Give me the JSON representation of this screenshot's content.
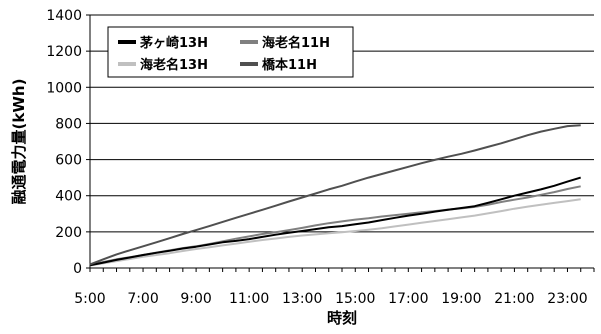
{
  "chart_data": {
    "type": "line",
    "title": "",
    "xlabel": "時刻",
    "ylabel": "融通電力量(kWh)",
    "x": [
      "5:00",
      "5:30",
      "6:00",
      "6:30",
      "7:00",
      "7:30",
      "8:00",
      "8:30",
      "9:00",
      "9:30",
      "10:00",
      "10:30",
      "11:00",
      "11:30",
      "12:00",
      "12:30",
      "13:00",
      "13:30",
      "14:00",
      "14:30",
      "15:00",
      "15:30",
      "16:00",
      "16:30",
      "17:00",
      "17:30",
      "18:00",
      "18:30",
      "19:00",
      "19:30",
      "20:00",
      "20:30",
      "21:00",
      "21:30",
      "22:00",
      "22:30",
      "23:00",
      "23:30"
    ],
    "x_ticks": [
      "5:00",
      "7:00",
      "9:00",
      "11:00",
      "13:00",
      "15:00",
      "17:00",
      "19:00",
      "21:00",
      "23:00"
    ],
    "ylim": [
      0,
      1400
    ],
    "y_ticks": [
      "0",
      "200",
      "400",
      "600",
      "800",
      "1000",
      "1200",
      "1400"
    ],
    "grid": "horizontal",
    "legend_position": "top-left",
    "series": [
      {
        "name": "茅ヶ崎13H",
        "color": "#000000",
        "values": [
          15,
          30,
          45,
          58,
          72,
          84,
          95,
          108,
          118,
          130,
          142,
          150,
          160,
          172,
          184,
          195,
          205,
          215,
          225,
          232,
          242,
          252,
          265,
          278,
          290,
          300,
          312,
          322,
          332,
          342,
          360,
          380,
          400,
          418,
          435,
          455,
          478,
          500
        ]
      },
      {
        "name": "海老名11H",
        "color": "#808080",
        "values": [
          18,
          33,
          48,
          60,
          72,
          85,
          98,
          110,
          120,
          133,
          148,
          162,
          175,
          188,
          198,
          210,
          222,
          236,
          248,
          258,
          268,
          275,
          285,
          293,
          300,
          308,
          315,
          323,
          330,
          338,
          350,
          365,
          378,
          390,
          405,
          420,
          437,
          452
        ]
      },
      {
        "name": "海老名13H",
        "color": "#c0c0c0",
        "values": [
          14,
          26,
          38,
          50,
          62,
          72,
          82,
          94,
          105,
          115,
          125,
          135,
          145,
          155,
          163,
          172,
          180,
          186,
          192,
          198,
          205,
          212,
          220,
          230,
          240,
          250,
          260,
          270,
          280,
          290,
          302,
          315,
          328,
          340,
          350,
          360,
          370,
          380
        ]
      },
      {
        "name": "橋本11H",
        "color": "#505050",
        "values": [
          20,
          48,
          75,
          98,
          120,
          142,
          165,
          188,
          210,
          232,
          255,
          278,
          300,
          322,
          345,
          368,
          390,
          412,
          435,
          455,
          478,
          500,
          520,
          540,
          560,
          580,
          598,
          616,
          632,
          650,
          670,
          690,
          712,
          735,
          755,
          770,
          785,
          790
        ]
      }
    ]
  }
}
